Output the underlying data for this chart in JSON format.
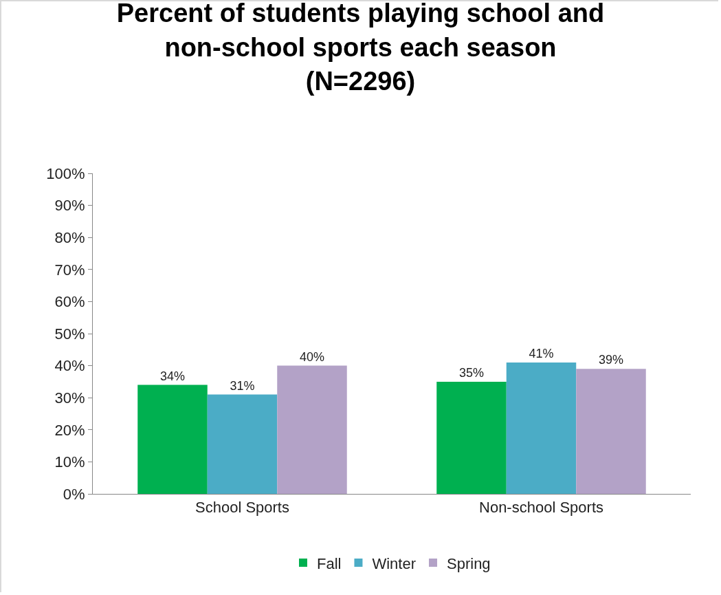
{
  "chart_data": {
    "type": "bar",
    "title": "Percent of students playing school and\nnon-school sports each season\n(N=2296)",
    "categories": [
      "School Sports",
      "Non-school Sports"
    ],
    "series": [
      {
        "name": "Fall",
        "color": "#00b050",
        "values": [
          34,
          35
        ],
        "value_labels": [
          "34%",
          "35%"
        ]
      },
      {
        "name": "Winter",
        "color": "#4bacc6",
        "values": [
          31,
          41
        ],
        "value_labels": [
          "31%",
          "41%"
        ]
      },
      {
        "name": "Spring",
        "color": "#b3a2c7",
        "values": [
          40,
          39
        ],
        "value_labels": [
          "40%",
          "39%"
        ]
      }
    ],
    "ylim": [
      0,
      100
    ],
    "yticks": [
      {
        "value": 0,
        "label": "0%"
      },
      {
        "value": 10,
        "label": "10%"
      },
      {
        "value": 20,
        "label": "20%"
      },
      {
        "value": 30,
        "label": "30%"
      },
      {
        "value": 40,
        "label": "40%"
      },
      {
        "value": 50,
        "label": "50%"
      },
      {
        "value": 60,
        "label": "60%"
      },
      {
        "value": 70,
        "label": "70%"
      },
      {
        "value": 80,
        "label": "80%"
      },
      {
        "value": 90,
        "label": "90%"
      },
      {
        "value": 100,
        "label": "100%"
      }
    ],
    "grid": false,
    "legend": "bottom"
  }
}
